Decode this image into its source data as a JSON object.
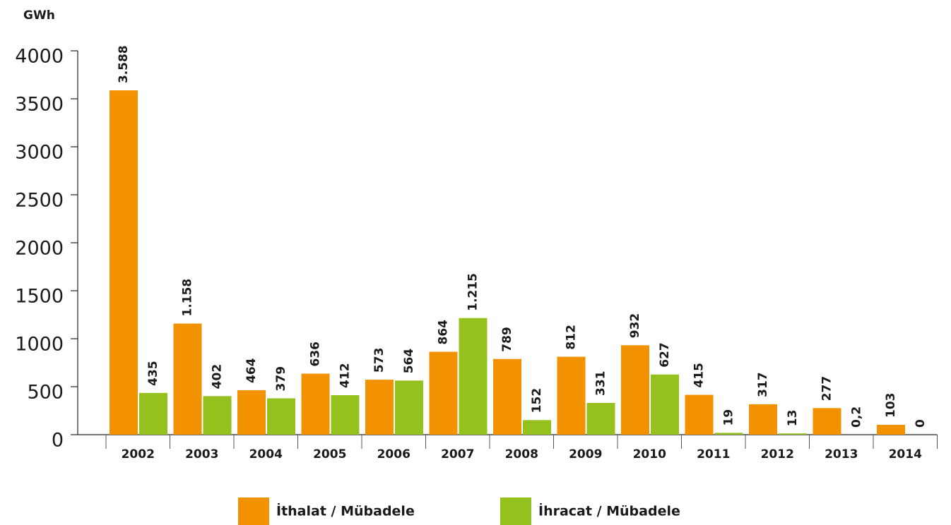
{
  "chart_data": {
    "type": "bar",
    "y_label": "GWh",
    "categories": [
      "2002",
      "2003",
      "2004",
      "2005",
      "2006",
      "2007",
      "2008",
      "2009",
      "2010",
      "2011",
      "2012",
      "2013",
      "2014"
    ],
    "series": [
      {
        "name": "İthalat / Mübadele",
        "color": "#f39200",
        "values": [
          3588,
          1158,
          464,
          636,
          573,
          864,
          789,
          812,
          932,
          415,
          317,
          277,
          103
        ],
        "value_labels": [
          "3.588",
          "1.158",
          "464",
          "636",
          "573",
          "864",
          "789",
          "812",
          "932",
          "415",
          "317",
          "277",
          "103"
        ]
      },
      {
        "name": "İhracat / Mübadele",
        "color": "#95c11f",
        "values": [
          435,
          402,
          379,
          412,
          564,
          1215,
          152,
          331,
          627,
          19,
          13,
          0.2,
          0
        ],
        "value_labels": [
          "435",
          "402",
          "379",
          "412",
          "564",
          "1.215",
          "152",
          "331",
          "627",
          "19",
          "13",
          "0,2",
          "0"
        ]
      }
    ],
    "ylim": [
      0,
      4000
    ],
    "yticks": [
      0,
      500,
      1000,
      1500,
      2000,
      2500,
      3000,
      3500,
      4000
    ]
  }
}
